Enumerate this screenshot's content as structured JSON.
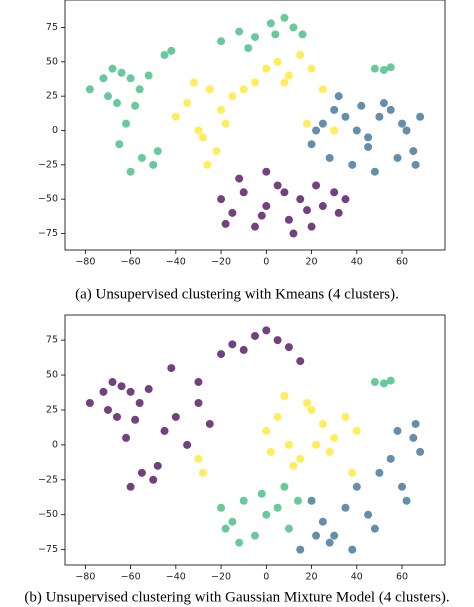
{
  "chart_data": [
    {
      "type": "scatter",
      "caption": "(a) Unsupervised clustering with Kmeans (4 clusters).",
      "xlim": [
        -89,
        79
      ],
      "ylim": [
        -87,
        95
      ],
      "xticks": [
        {
          "value": -80,
          "label": "−80"
        },
        {
          "value": -60,
          "label": "−60"
        },
        {
          "value": -40,
          "label": "−40"
        },
        {
          "value": -20,
          "label": "−20"
        },
        0,
        20,
        40,
        60
      ],
      "yticks": [
        {
          "value": -75,
          "label": "−75"
        },
        {
          "value": -50,
          "label": "−50"
        },
        {
          "value": -25,
          "label": "−25"
        },
        0,
        25,
        50,
        75
      ],
      "series": [
        {
          "color": "#35b779",
          "x": [
            -78,
            -72,
            -68,
            -64,
            -60,
            -56,
            -52,
            -66,
            -58,
            -62,
            -70,
            -55,
            -50,
            -60,
            -48,
            -65,
            -20,
            -12,
            -5,
            2,
            8,
            12,
            16,
            -8,
            4,
            48,
            52,
            55,
            -45,
            -42
          ],
          "values": [
            30,
            38,
            45,
            42,
            38,
            30,
            40,
            20,
            18,
            5,
            25,
            -20,
            -25,
            -30,
            -15,
            -10,
            65,
            72,
            68,
            78,
            82,
            75,
            70,
            60,
            70,
            45,
            44,
            46,
            55,
            58
          ]
        },
        {
          "color": "#fde725",
          "x": [
            -40,
            -35,
            -30,
            -25,
            -20,
            -28,
            -22,
            -15,
            -10,
            -5,
            0,
            5,
            10,
            15,
            20,
            25,
            -32,
            -18,
            -26,
            8,
            18,
            30
          ],
          "values": [
            10,
            20,
            0,
            30,
            15,
            -5,
            -15,
            25,
            30,
            35,
            45,
            50,
            40,
            55,
            45,
            30,
            35,
            5,
            -25,
            35,
            5,
            0
          ]
        },
        {
          "color": "#31688e",
          "x": [
            20,
            25,
            30,
            35,
            40,
            45,
            50,
            55,
            60,
            65,
            68,
            28,
            38,
            48,
            58,
            62,
            42,
            52,
            32,
            22,
            66,
            45
          ],
          "values": [
            -10,
            5,
            15,
            10,
            0,
            -5,
            10,
            15,
            5,
            -15,
            10,
            -20,
            -25,
            -30,
            -20,
            0,
            18,
            20,
            25,
            0,
            -25,
            -12
          ]
        },
        {
          "color": "#440154",
          "x": [
            -20,
            -15,
            -10,
            -5,
            0,
            5,
            10,
            15,
            20,
            25,
            30,
            -12,
            0,
            12,
            22,
            32,
            35,
            -2,
            8,
            18,
            -18
          ],
          "values": [
            -50,
            -60,
            -45,
            -70,
            -55,
            -40,
            -65,
            -50,
            -70,
            -55,
            -45,
            -35,
            -30,
            -75,
            -40,
            -60,
            -50,
            -62,
            -45,
            -58,
            -68
          ]
        }
      ]
    },
    {
      "type": "scatter",
      "caption": "(b) Unsupervised clustering with Gaussian Mixture Model (4 clusters).",
      "xlim": [
        -89,
        79
      ],
      "ylim": [
        -86,
        93
      ],
      "xticks": [
        {
          "value": -80,
          "label": "−80"
        },
        {
          "value": -60,
          "label": "−60"
        },
        {
          "value": -40,
          "label": "−40"
        },
        {
          "value": -20,
          "label": "−20"
        },
        0,
        20,
        40,
        60
      ],
      "yticks": [
        {
          "value": -75,
          "label": "−75"
        },
        {
          "value": -50,
          "label": "−50"
        },
        {
          "value": -25,
          "label": "−25"
        },
        0,
        25,
        50,
        75
      ],
      "series": [
        {
          "color": "#440154",
          "x": [
            -78,
            -72,
            -68,
            -64,
            -60,
            -56,
            -52,
            -66,
            -58,
            -62,
            -70,
            -55,
            -50,
            -60,
            -48,
            -45,
            -40,
            -35,
            -30,
            -25,
            -20,
            -15,
            -10,
            -5,
            0,
            5,
            10,
            15,
            -42,
            -30
          ],
          "values": [
            30,
            38,
            45,
            42,
            38,
            30,
            40,
            20,
            18,
            5,
            25,
            -20,
            -25,
            -30,
            -15,
            10,
            20,
            0,
            30,
            15,
            65,
            72,
            68,
            78,
            82,
            75,
            70,
            60,
            55,
            45
          ]
        },
        {
          "color": "#fde725",
          "x": [
            0,
            5,
            10,
            15,
            20,
            25,
            30,
            35,
            8,
            18,
            28,
            -30,
            -28,
            40,
            12,
            22,
            2,
            38
          ],
          "values": [
            10,
            20,
            0,
            -10,
            25,
            15,
            5,
            20,
            35,
            30,
            -5,
            -10,
            -20,
            10,
            -15,
            0,
            -5,
            -20
          ]
        },
        {
          "color": "#35b779",
          "x": [
            -20,
            -15,
            -10,
            -5,
            0,
            5,
            10,
            -12,
            -2,
            8,
            -18,
            48,
            52,
            55,
            14
          ],
          "values": [
            -45,
            -55,
            -40,
            -65,
            -50,
            -45,
            -60,
            -70,
            -35,
            -30,
            -60,
            45,
            44,
            46,
            -40
          ]
        },
        {
          "color": "#31688e",
          "x": [
            20,
            25,
            30,
            35,
            40,
            45,
            50,
            55,
            60,
            65,
            68,
            28,
            38,
            48,
            58,
            62,
            15,
            22,
            66
          ],
          "values": [
            -40,
            -55,
            -65,
            -45,
            -30,
            -50,
            -20,
            -10,
            -30,
            5,
            -5,
            -70,
            -75,
            -60,
            10,
            -40,
            -75,
            -65,
            15
          ]
        }
      ]
    }
  ]
}
